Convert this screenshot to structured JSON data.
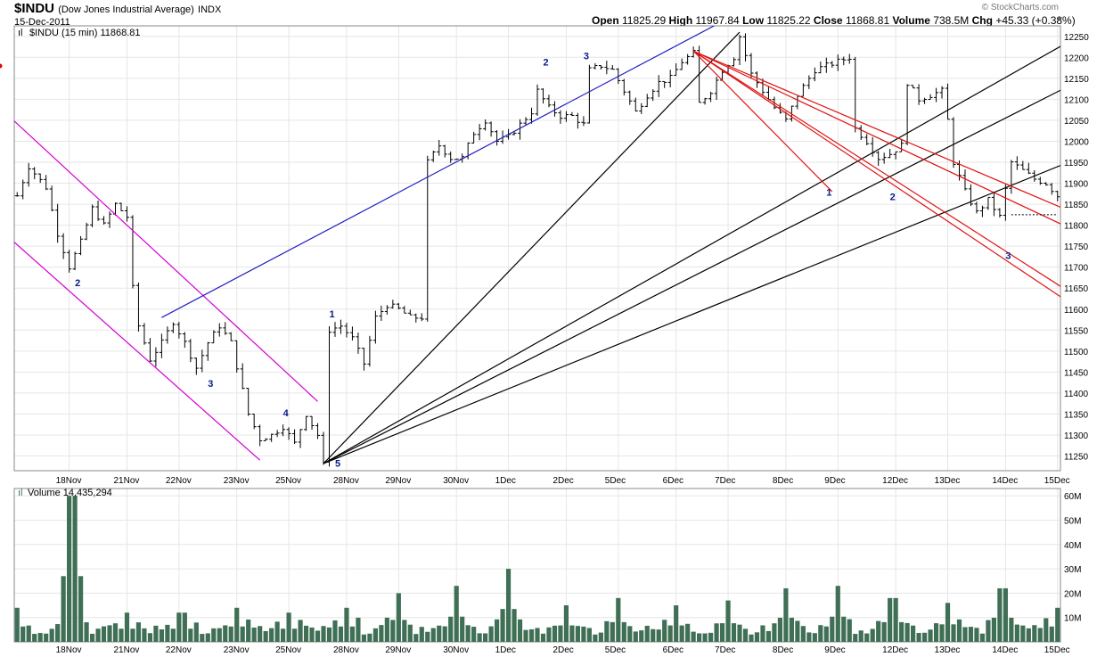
{
  "header": {
    "symbol": "$INDU",
    "description": "(Dow Jones Industrial Average)",
    "exchange": "INDX",
    "date": "15-Dec-2011",
    "open_label": "Open",
    "open": "11825.29",
    "high_label": "High",
    "high": "11967.84",
    "low_label": "Low",
    "low": "11825.22",
    "close_label": "Close",
    "close": "11868.81",
    "volume_label": "Volume",
    "volume": "738.5M",
    "chg_label": "Chg",
    "chg": "+45.33 (+0.38%)",
    "brand": "© StockCharts.com"
  },
  "colors": {
    "bars": "#000000",
    "volume": "#3f6f55",
    "channel": "#d400d4",
    "trend": "#1f1fbf",
    "fan_black": "#000000",
    "fan_red": "#e01010",
    "wave_label": "#0a1a8a",
    "grid": "#e6e6e6"
  },
  "chart_data": [
    {
      "type": "ohlc",
      "legend": "$INDU (15 min) 11868.81",
      "y_ticks": [
        11250,
        11300,
        11350,
        11400,
        11450,
        11500,
        11550,
        11600,
        11650,
        11700,
        11750,
        11800,
        11850,
        11900,
        11950,
        12000,
        12050,
        12100,
        12150,
        12200,
        12250
      ],
      "ylim": [
        11215,
        12275
      ],
      "x_labels": [
        "18Nov",
        "21Nov",
        "22Nov",
        "23Nov",
        "25Nov",
        "28Nov",
        "29Nov",
        "30Nov",
        "1Dec",
        "2Dec",
        "5Dec",
        "6Dec",
        "7Dec",
        "8Dec",
        "9Dec",
        "12Dec",
        "13Dec",
        "14Dec",
        "15Dec"
      ],
      "price_path": [
        [
          0,
          11870
        ],
        [
          2,
          11940
        ],
        [
          5,
          11890
        ],
        [
          7,
          11780
        ],
        [
          9,
          11700
        ],
        [
          11,
          11760
        ],
        [
          13,
          11840
        ],
        [
          15,
          11800
        ],
        [
          17,
          11850
        ],
        [
          19,
          11820
        ],
        [
          20,
          11650
        ],
        [
          21,
          11560
        ],
        [
          23,
          11480
        ],
        [
          25,
          11520
        ],
        [
          27,
          11570
        ],
        [
          29,
          11520
        ],
        [
          31,
          11460
        ],
        [
          33,
          11520
        ],
        [
          35,
          11560
        ],
        [
          37,
          11520
        ],
        [
          40,
          11350
        ],
        [
          42,
          11290
        ],
        [
          44,
          11300
        ],
        [
          46,
          11320
        ],
        [
          48,
          11280
        ],
        [
          50,
          11350
        ],
        [
          52,
          11300
        ],
        [
          53,
          11230
        ],
        [
          54,
          11550
        ],
        [
          56,
          11560
        ],
        [
          58,
          11530
        ],
        [
          60,
          11470
        ],
        [
          62,
          11580
        ],
        [
          64,
          11610
        ],
        [
          66,
          11600
        ],
        [
          68,
          11580
        ],
        [
          70,
          11580
        ],
        [
          71,
          11950
        ],
        [
          73,
          11990
        ],
        [
          75,
          11960
        ],
        [
          77,
          11960
        ],
        [
          79,
          12020
        ],
        [
          81,
          12050
        ],
        [
          83,
          12000
        ],
        [
          85,
          12010
        ],
        [
          87,
          12040
        ],
        [
          89,
          12070
        ],
        [
          90,
          12120
        ],
        [
          92,
          12080
        ],
        [
          94,
          12060
        ],
        [
          96,
          12060
        ],
        [
          98,
          12040
        ],
        [
          99,
          12170
        ],
        [
          101,
          12180
        ],
        [
          103,
          12170
        ],
        [
          105,
          12120
        ],
        [
          107,
          12070
        ],
        [
          109,
          12110
        ],
        [
          111,
          12140
        ],
        [
          113,
          12150
        ],
        [
          115,
          12190
        ],
        [
          117,
          12210
        ],
        [
          118,
          12090
        ],
        [
          120,
          12120
        ],
        [
          122,
          12170
        ],
        [
          124,
          12200
        ],
        [
          125,
          12250
        ],
        [
          127,
          12160
        ],
        [
          129,
          12120
        ],
        [
          131,
          12080
        ],
        [
          133,
          12050
        ],
        [
          135,
          12110
        ],
        [
          136,
          12130
        ],
        [
          138,
          12170
        ],
        [
          140,
          12180
        ],
        [
          142,
          12190
        ],
        [
          144,
          12200
        ],
        [
          145,
          12030
        ],
        [
          147,
          12000
        ],
        [
          149,
          11960
        ],
        [
          151,
          11970
        ],
        [
          153,
          11990
        ],
        [
          154,
          12140
        ],
        [
          156,
          12100
        ],
        [
          158,
          12110
        ],
        [
          160,
          12120
        ],
        [
          161,
          12050
        ],
        [
          162,
          11950
        ],
        [
          164,
          11880
        ],
        [
          166,
          11830
        ],
        [
          168,
          11860
        ],
        [
          170,
          11820
        ],
        [
          172,
          11950
        ],
        [
          174,
          11930
        ],
        [
          176,
          11910
        ],
        [
          178,
          11900
        ],
        [
          180,
          11870
        ]
      ],
      "annotations": [
        "2",
        "3",
        "4",
        "5",
        "1",
        "2",
        "3",
        "1",
        "2",
        "3"
      ]
    },
    {
      "type": "bar",
      "legend": "Volume 14,435,294",
      "y_ticks": [
        "10M",
        "20M",
        "30M",
        "40M",
        "50M",
        "60M"
      ],
      "ylim": [
        0,
        63
      ],
      "day_spikes": [
        [
          0,
          14
        ],
        [
          1,
          60
        ],
        [
          2,
          12
        ],
        [
          3,
          12
        ],
        [
          4,
          14
        ],
        [
          5,
          12
        ],
        [
          6,
          14
        ],
        [
          7,
          20
        ],
        [
          8,
          23
        ],
        [
          9,
          30
        ],
        [
          10,
          15
        ],
        [
          11,
          18
        ],
        [
          12,
          15
        ],
        [
          13,
          17
        ],
        [
          14,
          22
        ],
        [
          15,
          23
        ],
        [
          16,
          18
        ],
        [
          17,
          16
        ],
        [
          18,
          22
        ],
        [
          19,
          14
        ]
      ]
    }
  ]
}
